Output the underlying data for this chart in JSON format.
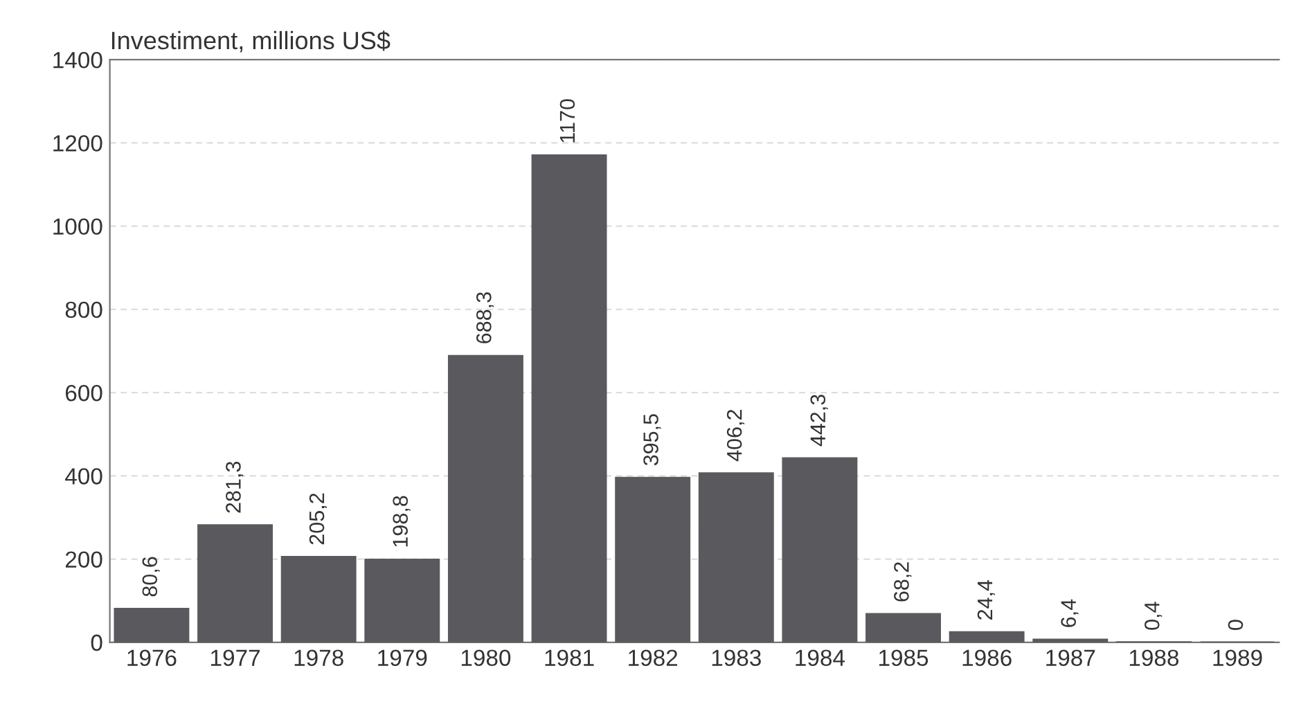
{
  "chart_data": {
    "type": "bar",
    "title": "Investiment, millions US$",
    "categories": [
      "1976",
      "1977",
      "1978",
      "1979",
      "1980",
      "1981",
      "1982",
      "1983",
      "1984",
      "1985",
      "1986",
      "1987",
      "1988",
      "1989"
    ],
    "values": [
      80.6,
      281.3,
      205.2,
      198.8,
      688.3,
      1170,
      395.5,
      406.2,
      442.3,
      68.2,
      24.4,
      6.4,
      0.4,
      0
    ],
    "value_labels": [
      "80,6",
      "281,3",
      "205,2",
      "198,8",
      "688,3",
      "1170",
      "395,5",
      "406,2",
      "442,3",
      "68,2",
      "24,4",
      "6,4",
      "0,4",
      "0"
    ],
    "color": "#5a5a5e",
    "ylim": [
      0,
      1400
    ],
    "yticks": [
      0,
      200,
      400,
      600,
      800,
      1000,
      1200,
      1400
    ],
    "grid": "y"
  }
}
